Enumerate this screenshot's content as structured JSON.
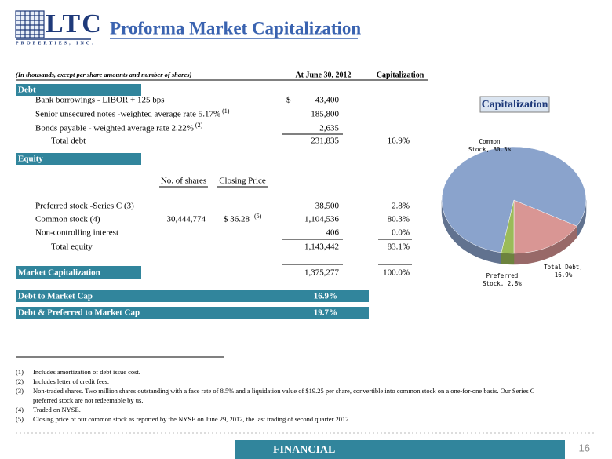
{
  "logo": {
    "name": "LTC",
    "tagline": "PROPERTIES, INC."
  },
  "header": {
    "title": "Proforma Market Capitalization"
  },
  "table": {
    "note": "(In thousands, except per share amounts and number of shares)",
    "columns": [
      "At June 30, 2012",
      "Capitalization"
    ],
    "debt": {
      "heading": "Debt",
      "rows": [
        {
          "label": "Bank borrowings - LIBOR + 125 bps",
          "currency": "$",
          "amount": "43,400"
        },
        {
          "label": "Senior unsecured notes -weighted average rate 5.17%",
          "note": "(1)",
          "amount": "185,800"
        },
        {
          "label": "Bonds payable  - weighted average rate 2.22%",
          "note": "(2)",
          "amount": "2,635"
        }
      ],
      "total": {
        "label": "Total debt",
        "amount": "231,835",
        "pct": "16.9%"
      }
    },
    "equity": {
      "heading": "Equity",
      "columns": [
        "No. of shares",
        "Closing Price"
      ],
      "rows": [
        {
          "label": "Preferred stock -Series C (3)",
          "amount": "38,500",
          "pct": "2.8%"
        },
        {
          "label": "Common stock (4)",
          "shares": "30,444,774",
          "price": "$ 36.28",
          "note": "(5)",
          "amount": "1,104,536",
          "pct": "80.3%"
        },
        {
          "label": "Non-controlling interest",
          "amount": "406",
          "pct": "0.0%"
        }
      ],
      "total": {
        "label": "Total equity",
        "amount": "1,143,442",
        "pct": "83.1%"
      }
    },
    "market_cap": {
      "label": "Market Capitalization",
      "amount": "1,375,277",
      "pct": "100.0%"
    },
    "ratios": [
      {
        "label": "Debt to Market Cap",
        "value": "16.9%"
      },
      {
        "label": "Debt & Preferred to Market Cap",
        "value": "19.7%"
      }
    ]
  },
  "pie": {
    "title": "Capitalization",
    "slices": [
      {
        "label": [
          "Total Debt,",
          "16.9%"
        ],
        "value": 16.9,
        "color": "#d99694"
      },
      {
        "label": [
          "Common",
          "Stock, 80.3%"
        ],
        "value": 80.3,
        "color": "#8aa3cc"
      },
      {
        "label": [
          "Preferred",
          "Stock, 2.8%"
        ],
        "value": 2.8,
        "color": "#9bbb59"
      }
    ]
  },
  "footnotes": [
    {
      "marker": "(1)",
      "lines": [
        "Includes amortization of debt issue cost."
      ]
    },
    {
      "marker": "(2)",
      "lines": [
        "Includes letter of credit fees."
      ]
    },
    {
      "marker": "(3)",
      "lines": [
        "Non-traded shares.  Two million shares outstanding with a face rate of 8.5% and a liquidation value of $19.25 per share, convertible into common stock on a one-for-one basis.  Our Series C",
        "preferred stock are not redeemable by us."
      ]
    },
    {
      "marker": "(4)",
      "lines": [
        "Traded on NYSE."
      ]
    },
    {
      "marker": "(5)",
      "lines": [
        "Closing price of our common stock as reported by the NYSE on June 29, 2012, the last trading of second quarter 2012."
      ]
    }
  ],
  "footer": {
    "section": "FINANCIAL",
    "page": "16"
  }
}
